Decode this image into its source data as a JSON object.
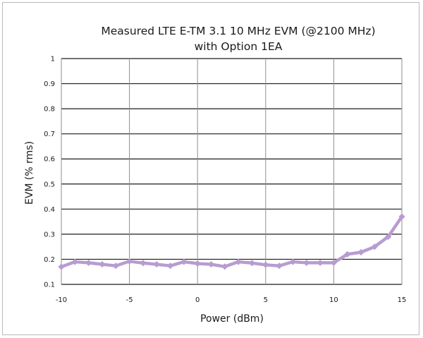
{
  "chart_data": {
    "type": "line",
    "title": [
      "Measured LTE E-TM 3.1 10 MHz EVM (@2100 MHz)",
      "with Option 1EA"
    ],
    "xlabel": "Power (dBm)",
    "ylabel": "EVM (% rms)",
    "xlim": [
      -10,
      15
    ],
    "ylim": [
      0.1,
      1
    ],
    "x_ticks": [
      -10,
      -5,
      0,
      5,
      10,
      15
    ],
    "x_tick_labels": [
      "-10",
      "-5",
      "0",
      "5",
      "10",
      "15"
    ],
    "y_ticks": [
      0.1,
      0.2,
      0.3,
      0.4,
      0.5,
      0.6,
      0.7,
      0.8,
      0.9,
      1
    ],
    "y_tick_labels": [
      "0.1",
      "0.2",
      "0.3",
      "0.4",
      "0.5",
      "0.6",
      "0.7",
      "0.8",
      "0.9",
      "1"
    ],
    "grid": true,
    "legend": false,
    "series": [
      {
        "color": "#b89cd0",
        "x": [
          -10,
          -9,
          -8,
          -7,
          -6,
          -5,
          -4,
          -3,
          -2,
          -1,
          0,
          1,
          2,
          3,
          4,
          5,
          6,
          7,
          8,
          9,
          10,
          11,
          12,
          13,
          14,
          15
        ],
        "y": [
          0.17,
          0.19,
          0.186,
          0.18,
          0.174,
          0.192,
          0.185,
          0.18,
          0.174,
          0.19,
          0.183,
          0.18,
          0.171,
          0.19,
          0.185,
          0.178,
          0.174,
          0.19,
          0.186,
          0.186,
          0.186,
          0.22,
          0.228,
          0.25,
          0.29,
          0.37
        ]
      }
    ]
  }
}
